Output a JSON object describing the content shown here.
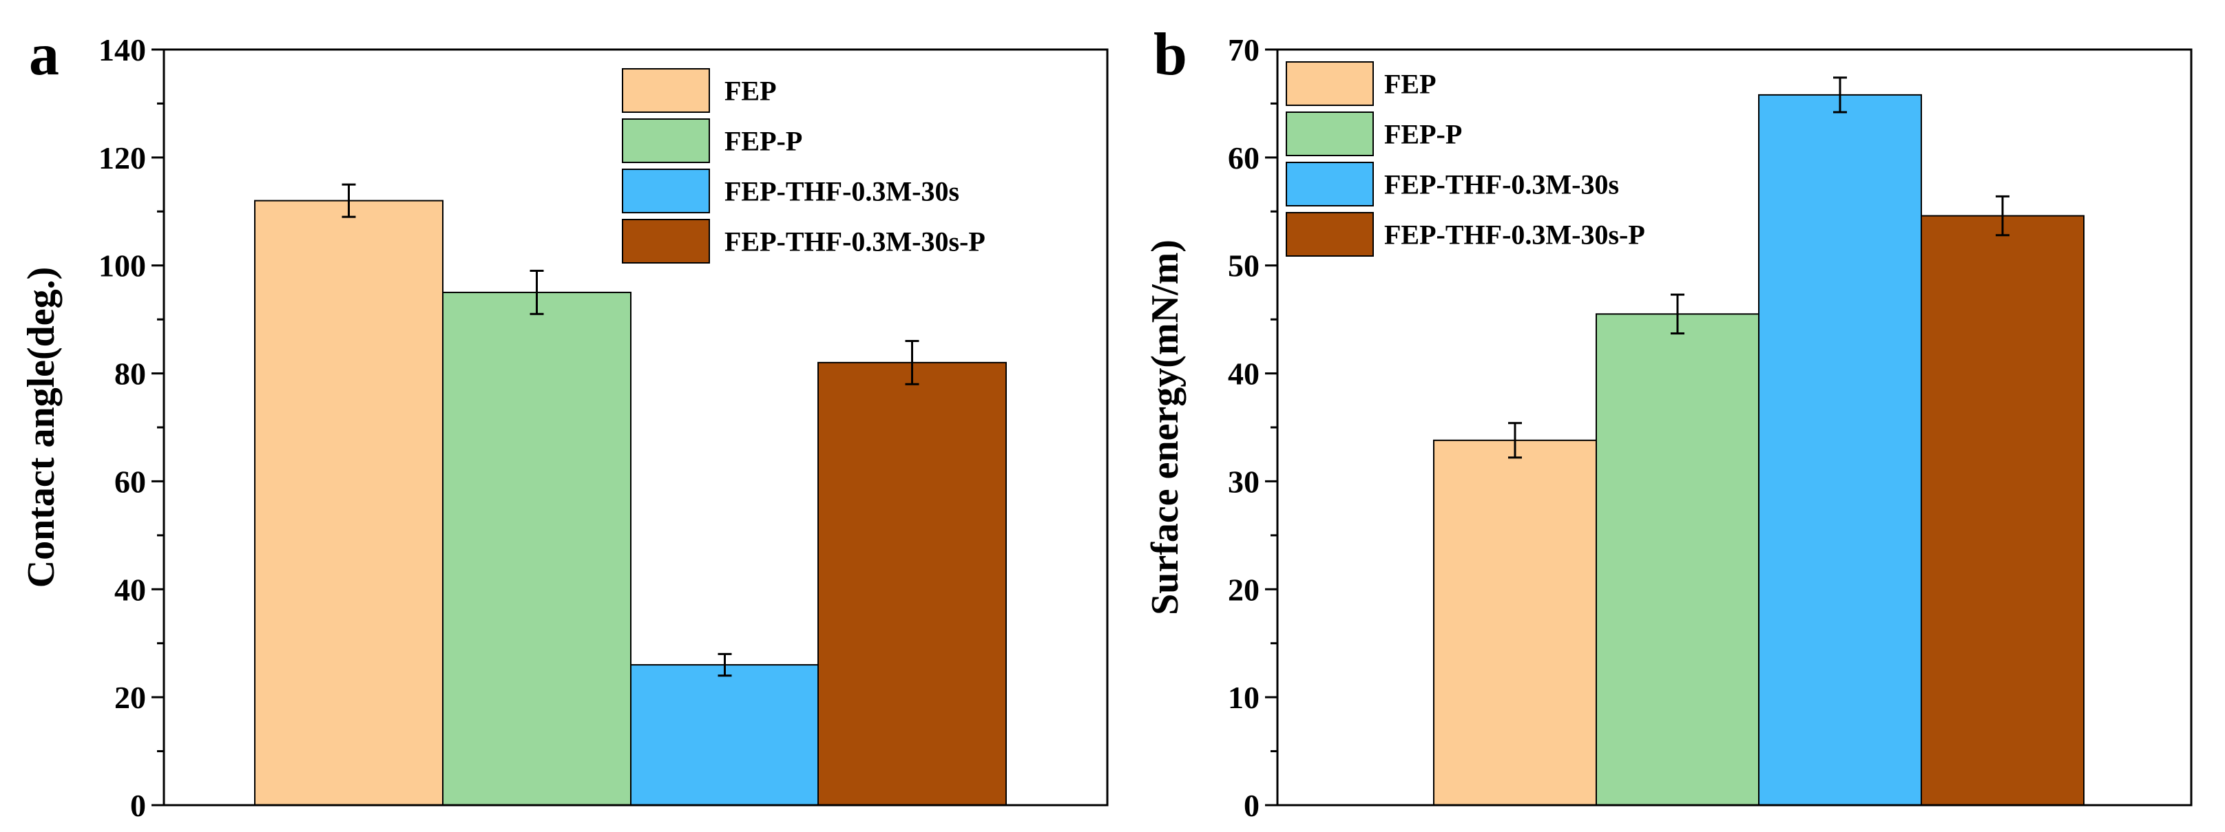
{
  "chart_data": [
    {
      "panel": "a",
      "type": "bar",
      "ylabel": "Contact angle(deg.)",
      "xlabel": "",
      "ylim": [
        0,
        140
      ],
      "yticks": [
        0,
        20,
        40,
        60,
        80,
        100,
        120,
        140
      ],
      "legend_position": "top-right",
      "series": [
        {
          "name": "FEP",
          "value": 112,
          "error": 3,
          "color": "#FDCC94"
        },
        {
          "name": "FEP-P",
          "value": 95,
          "error": 4,
          "color": "#9AD89C"
        },
        {
          "name": "FEP-THF-0.3M-30s",
          "value": 26,
          "error": 2,
          "color": "#47BBFB"
        },
        {
          "name": "FEP-THF-0.3M-30s-P",
          "value": 82,
          "error": 4,
          "color": "#A84D07"
        }
      ]
    },
    {
      "panel": "b",
      "type": "bar",
      "ylabel": "Surface energy(mN/m)",
      "xlabel": "",
      "ylim": [
        0,
        70
      ],
      "yticks": [
        0,
        10,
        20,
        30,
        40,
        50,
        60,
        70
      ],
      "legend_position": "top-left",
      "series": [
        {
          "name": "FEP",
          "value": 33.8,
          "error": 1.6,
          "color": "#FDCC94"
        },
        {
          "name": "FEP-P",
          "value": 45.5,
          "error": 1.8,
          "color": "#9AD89C"
        },
        {
          "name": "FEP-THF-0.3M-30s",
          "value": 65.8,
          "error": 1.6,
          "color": "#47BBFB"
        },
        {
          "name": "FEP-THF-0.3M-30s-P",
          "value": 54.6,
          "error": 1.8,
          "color": "#A84D07"
        }
      ]
    }
  ]
}
